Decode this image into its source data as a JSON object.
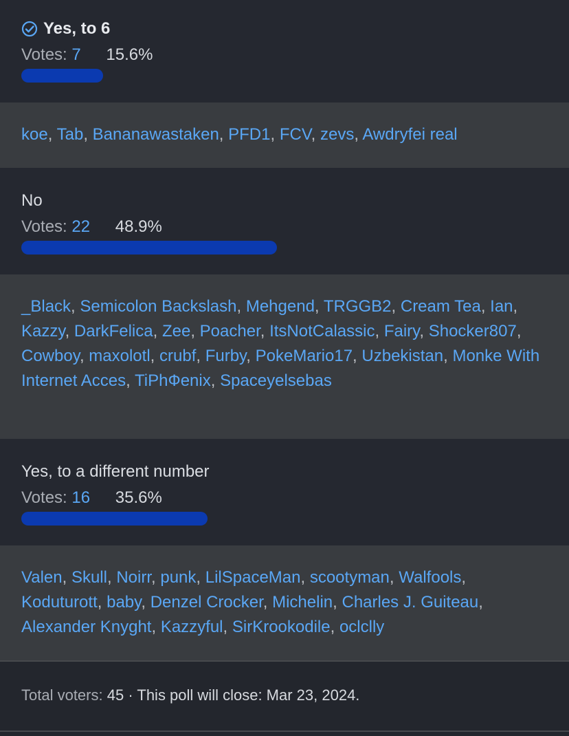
{
  "options": [
    {
      "label": "Yes, to 6",
      "selected": true,
      "votes_label": "Votes:",
      "votes": "7",
      "percent": "15.6%",
      "fraction": 0.156,
      "voters": [
        "koe",
        "Tab",
        "Bananawastaken",
        "PFD1",
        "FCV",
        "zevs",
        "Awdryfei real"
      ]
    },
    {
      "label": "No",
      "selected": false,
      "votes_label": "Votes:",
      "votes": "22",
      "percent": "48.9%",
      "fraction": 0.489,
      "voters": [
        "_Black",
        "Semicolon Backslash",
        "Mehgend",
        "TRGGB2",
        "Cream Tea",
        "Ian",
        "Kazzy",
        "DarkFelica",
        "Zee",
        "Poacher",
        "ItsNotCalassic",
        "Fairy",
        "Shocker807",
        "Cowboy",
        "maxolotl",
        "crubf",
        "Furby",
        "PokeMario17",
        "Uzbekistan",
        "Monke With Internet Acces",
        "TiPhФenix",
        "Spaceyelsebas"
      ]
    },
    {
      "label": "Yes, to a different number",
      "selected": false,
      "votes_label": "Votes:",
      "votes": "16",
      "percent": "35.6%",
      "fraction": 0.356,
      "voters": [
        "Valen",
        "Skull",
        "Noirr",
        "punk",
        "LilSpaceMan",
        "scootyman",
        "Walfools",
        "Koduturott",
        "baby",
        "Denzel Crocker",
        "Michelin",
        "Charles J. Guiteau",
        "Alexander Knyght",
        "Kazzyful",
        "SirKrookodile",
        "oclclly"
      ]
    }
  ],
  "footer": {
    "total_label": "Total voters:",
    "total": "45",
    "close_text": "· This poll will close: Mar 23, 2024."
  },
  "colors": {
    "bar": "#0b3ab0",
    "link": "#5aa7f5",
    "accent_check": "#5aa7f5"
  }
}
